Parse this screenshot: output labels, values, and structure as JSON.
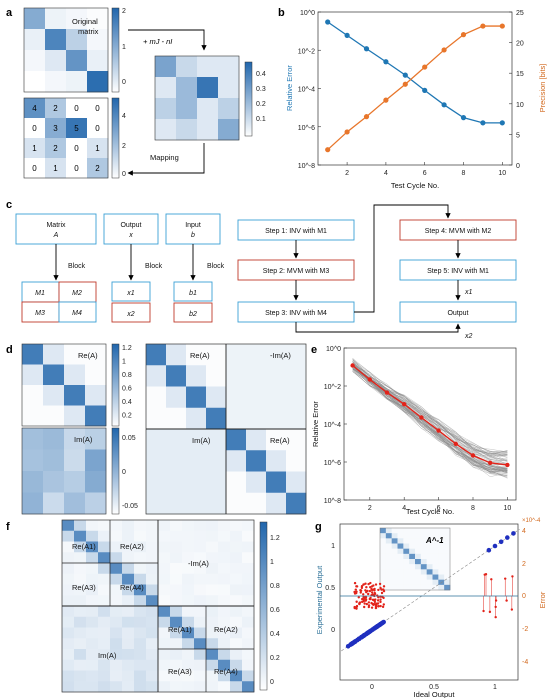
{
  "panel_labels": {
    "a": "a",
    "b": "b",
    "c": "c",
    "d": "d",
    "e": "e",
    "f": "f",
    "g": "g"
  },
  "panel_a": {
    "original_label_1": "Original",
    "original_label_2": "matrix",
    "shift_label": "+ mJ - nI",
    "mapping_label": "Mapping",
    "mapped_values": [
      [
        4,
        2,
        0,
        0
      ],
      [
        0,
        3,
        5,
        0
      ],
      [
        1,
        2,
        0,
        1
      ],
      [
        0,
        1,
        0,
        2
      ]
    ],
    "cb1_ticks": [
      "2",
      "1",
      "0"
    ],
    "cb2_ticks": [
      "0.4",
      "0.3",
      "0.2",
      "0.1"
    ],
    "cb3_ticks": [
      "4",
      "2",
      "0"
    ]
  },
  "chart_data": [
    {
      "type": "line",
      "panel": "b",
      "x": [
        1,
        2,
        3,
        4,
        5,
        6,
        7,
        8,
        9,
        10
      ],
      "xlabel": "Test Cycle No.",
      "ylabel": "Relative Error",
      "y2label": "Precision [bits]",
      "xlim": [
        0.5,
        10.5
      ],
      "ylim_log": [
        1e-08,
        1
      ],
      "y2lim": [
        0,
        25
      ],
      "x_ticks": [
        "2",
        "4",
        "6",
        "8",
        "10"
      ],
      "y_ticks": [
        "10^0",
        "10^-2",
        "10^-4",
        "10^-6",
        "10^-8"
      ],
      "y2_ticks": [
        "25",
        "20",
        "15",
        "10",
        "5",
        "0"
      ],
      "series": [
        {
          "axis": "left",
          "color": "#1f77b4",
          "values": [
            0.3,
            0.06,
            0.012,
            0.0025,
            0.0005,
            8e-05,
            1.4e-05,
            3e-06,
            1.6e-06,
            1.6e-06
          ]
        },
        {
          "axis": "right",
          "color": "#e8762b",
          "values": [
            2.5,
            5.4,
            7.9,
            10.6,
            13.2,
            16.0,
            18.8,
            21.3,
            22.7,
            22.7
          ]
        }
      ]
    },
    {
      "type": "line",
      "panel": "e",
      "x": [
        1,
        2,
        3,
        4,
        5,
        6,
        7,
        8,
        9,
        10
      ],
      "xlabel": "Test Cycle No.",
      "ylabel": "Relative Error",
      "xlim": [
        0.5,
        10.5
      ],
      "ylim_log": [
        1e-08,
        1
      ],
      "x_ticks": [
        "2",
        "4",
        "6",
        "8",
        "10"
      ],
      "y_ticks": [
        "10^0",
        "10^-2",
        "10^-4",
        "10^-6",
        "10^-8"
      ],
      "series": [
        {
          "color": "#e2231a",
          "values": [
            0.12,
            0.022,
            0.0045,
            0.0011,
            0.00022,
            4.5e-05,
            9e-06,
            2.2e-06,
            9e-07,
            7e-07
          ]
        }
      ],
      "background_color": "#8a8a8a"
    },
    {
      "type": "scatter",
      "panel": "g",
      "xlabel": "Ideal Output",
      "ylabel": "Experimental Output",
      "y2label": "Error",
      "x_ticks": [
        "0",
        "0.5",
        "1"
      ],
      "y_ticks": [
        "1",
        "0.5",
        "0"
      ],
      "y2_ticks": [
        "4",
        "2",
        "0",
        "-2",
        "-4"
      ],
      "y2_scale": "×10^-4",
      "inset_label": "A^-1",
      "colors": {
        "ideal": "#1f2fbf",
        "error": "#e2231a",
        "axis_left": "#2a6f97",
        "axis_right": "#d2691e"
      }
    }
  ],
  "panel_c": {
    "matrix_title": "Matrix",
    "matrix_sym": "A",
    "output_title": "Output",
    "output_sym": "x",
    "input_title": "Input",
    "input_sym": "b",
    "block_label": "Block",
    "blocks_A": [
      "M1",
      "M2",
      "M3",
      "M4"
    ],
    "blocks_x": [
      "x1",
      "x2"
    ],
    "blocks_b": [
      "b1",
      "b2"
    ],
    "steps": [
      "Step 1: INV with M1",
      "Step 2: MVM with M3",
      "Step 3: INV with M4",
      "Step 4: MVM with M2",
      "Step 5: INV with M1"
    ],
    "output_label": "Output",
    "x1": "x1",
    "x2": "x2",
    "colors": {
      "blue": "#3a9fd6",
      "red": "#c0392b"
    }
  },
  "panel_d": {
    "re_A": "Re(A)",
    "im_A": "Im(A)",
    "neg_im_A": "-Im(A)",
    "cb_top_ticks": [
      "1.2",
      "1",
      "0.8",
      "0.6",
      "0.4",
      "0.2"
    ],
    "cb_bot_ticks": [
      "0.05",
      "0",
      "-0.05"
    ]
  },
  "panel_f": {
    "re_A1": "Re(A1)",
    "re_A2": "Re(A2)",
    "re_A3": "Re(A3)",
    "re_A4": "Re(A4)",
    "im_A": "Im(A)",
    "neg_im_A": "-Im(A)",
    "cb_ticks": [
      "1.2",
      "1",
      "0.8",
      "0.6",
      "0.4",
      "0.2",
      "0"
    ]
  }
}
